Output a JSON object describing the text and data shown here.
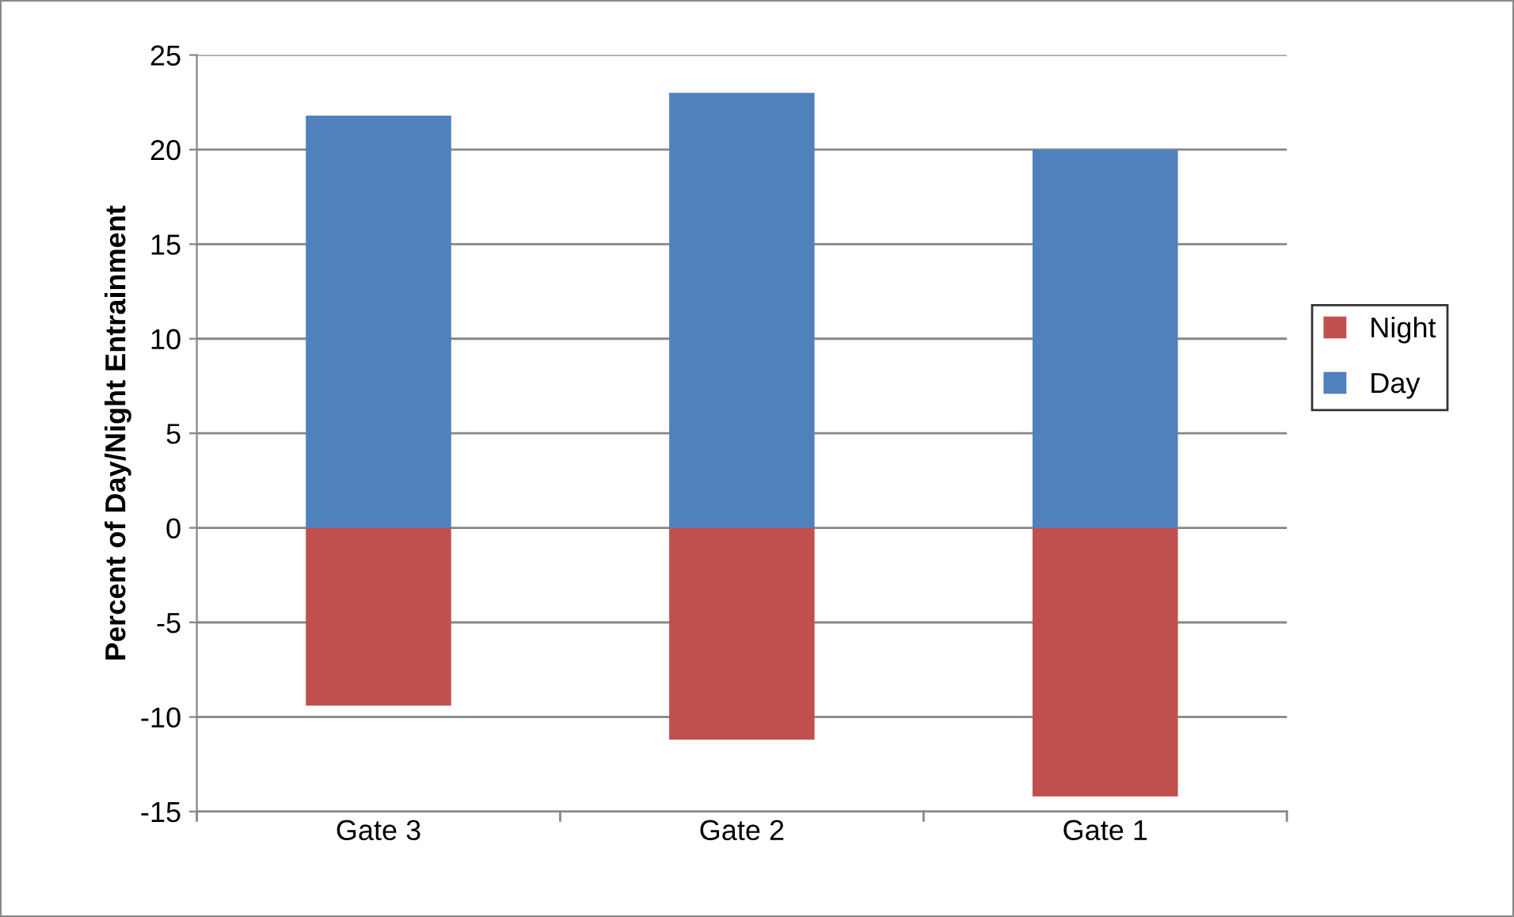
{
  "chart_data": {
    "type": "bar",
    "ylabel": "Percent of Day/Night Entrainment",
    "categories": [
      "Gate 3",
      "Gate 2",
      "Gate 1"
    ],
    "series": [
      {
        "name": "Night",
        "color": "#c0504d",
        "values": [
          -9.4,
          -11.2,
          -14.2
        ]
      },
      {
        "name": "Day",
        "color": "#4f81bd",
        "values": [
          21.8,
          23.0,
          20.0
        ]
      }
    ],
    "stacked": true,
    "ylim": [
      -15,
      25
    ],
    "yticks": [
      -15,
      -10,
      -5,
      0,
      5,
      10,
      15,
      20,
      25
    ],
    "grid": "y",
    "legend": "right"
  }
}
